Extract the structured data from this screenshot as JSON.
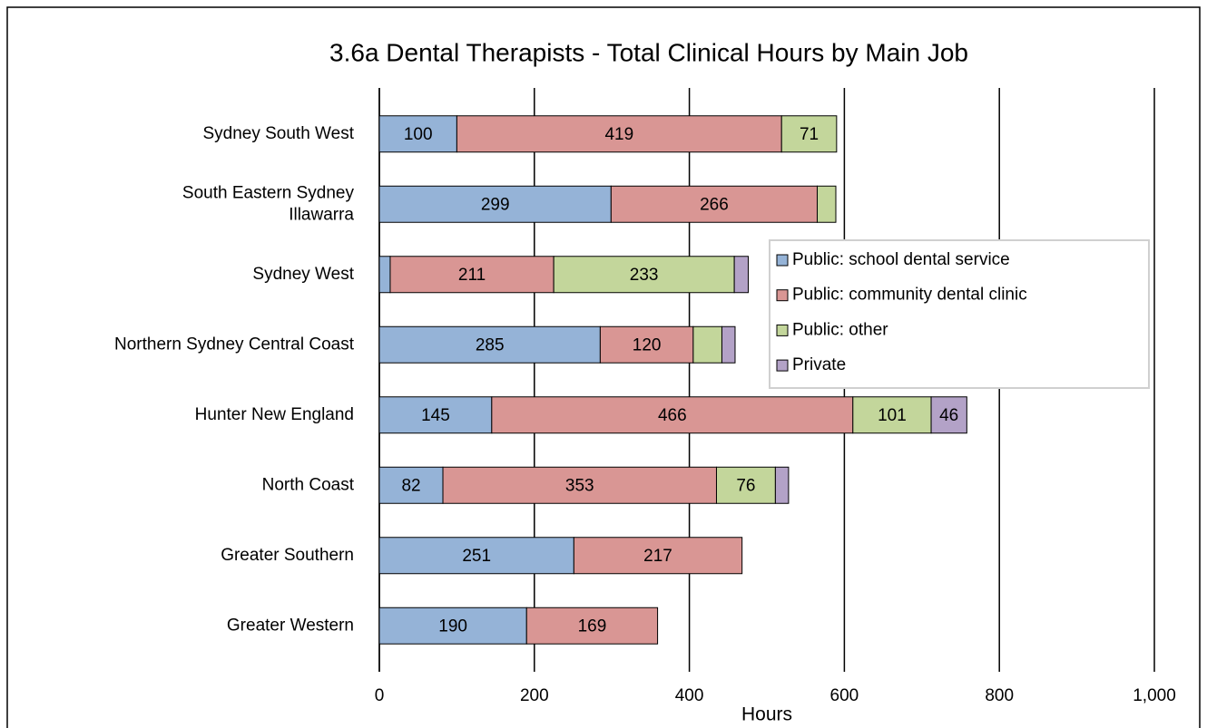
{
  "chart_data": {
    "type": "stacked_bar_horizontal",
    "title": "3.6a Dental Therapists - Total Clinical Hours by Main Job",
    "x_label": "Hours",
    "categories": [
      "Sydney South West",
      "South Eastern Sydney Illawarra",
      "Sydney West",
      "Northern Sydney Central Coast",
      "Hunter New England",
      "North Coast",
      "Greater Southern",
      "Greater Western"
    ],
    "series": [
      {
        "name": "Public: school dental service",
        "color": "#95b3d7",
        "values": [
          100,
          299,
          14,
          285,
          145,
          82,
          251,
          190
        ]
      },
      {
        "name": "Public: community dental clinic",
        "color": "#d99694",
        "values": [
          419,
          266,
          211,
          120,
          466,
          353,
          217,
          169
        ]
      },
      {
        "name": "Public: other",
        "color": "#c3d69b",
        "values": [
          71,
          24,
          233,
          37,
          101,
          76,
          null,
          null
        ]
      },
      {
        "name": "Private",
        "color": "#b3a2c7",
        "values": [
          null,
          null,
          18,
          17,
          46,
          17,
          null,
          null
        ]
      }
    ],
    "xlim": [
      0,
      1000
    ],
    "xticks": [
      0,
      200,
      400,
      600,
      800,
      {
        "value": 1000,
        "label": "1,000"
      }
    ],
    "grid": true
  }
}
